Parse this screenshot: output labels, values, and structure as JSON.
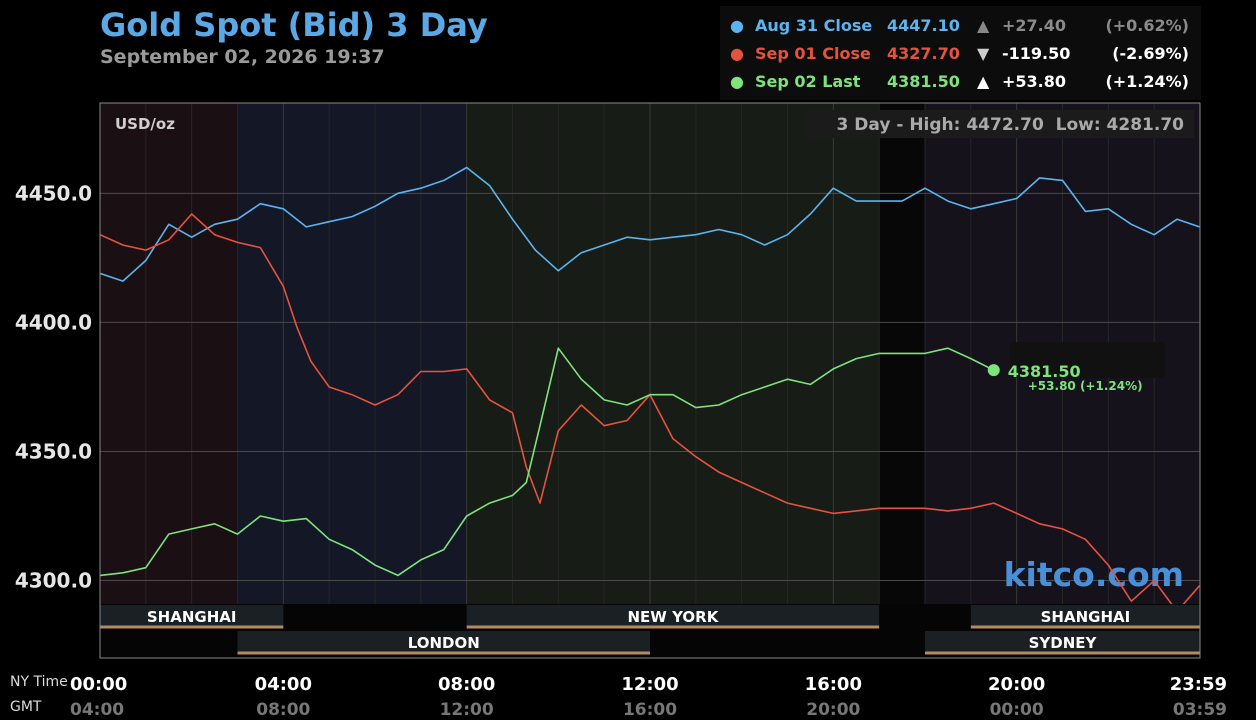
{
  "header": {
    "title": "Gold Spot (Bid) 3 Day",
    "subtitle": "September 02, 2026 19:37"
  },
  "legend": [
    {
      "label": "Aug 31 Close",
      "value": "4447.10",
      "arrow": "▲",
      "change": "+27.40",
      "pct": "(+0.62%)",
      "color": "#5bb4ef",
      "text_color": "#5bb4ef",
      "arrow_color": "#888",
      "dim": true
    },
    {
      "label": "Sep 01 Close",
      "value": "4327.70",
      "arrow": "▼",
      "change": "-119.50",
      "pct": "(-2.69%)",
      "color": "#e5533f",
      "text_color": "#e5533f",
      "arrow_color": "#cccccc",
      "dim": false
    },
    {
      "label": "Sep 02 Last",
      "value": "4381.50",
      "arrow": "▲",
      "change": "+53.80",
      "pct": "(+1.24%)",
      "color": "#7ee37c",
      "text_color": "#7ee37c",
      "arrow_color": "#ffffff",
      "dim": false
    }
  ],
  "plot": {
    "unit": "USD/oz",
    "range_text": "3 Day - High: 4472.70  Low: 4281.70",
    "watermark": "kitco.com",
    "last_value": "4381.50",
    "last_change": "+53.80 (+1.24%)"
  },
  "axis": {
    "ny_time_label": "NY Time",
    "gmt_label": "GMT"
  },
  "sessions_top": [
    {
      "name": "SHANGHAI",
      "start": 0,
      "end": 4
    },
    {
      "name": "NEW YORK",
      "start": 8,
      "end": 17
    },
    {
      "name": "SHANGHAI",
      "start": 19,
      "end": 24
    }
  ],
  "sessions_bottom": [
    {
      "name": "LONDON",
      "start": 3,
      "end": 12
    },
    {
      "name": "SYDNEY",
      "start": 18,
      "end": 24
    }
  ],
  "chart_data": {
    "type": "line",
    "title": "Gold Spot (Bid) 3 Day",
    "ylabel": "USD/oz",
    "ylim": [
      4270,
      4485
    ],
    "xlim": [
      0,
      24
    ],
    "y_ticks": [
      4300.0,
      4350.0,
      4400.0,
      4450.0
    ],
    "y_tick_labels": [
      "4300.0",
      "4350.0",
      "4400.0",
      "4450.0"
    ],
    "x_ticks": [
      0,
      4,
      8,
      12,
      16,
      20,
      24
    ],
    "x_tick_labels_ny": [
      "00:00",
      "04:00",
      "08:00",
      "12:00",
      "16:00",
      "20:00",
      "23:59"
    ],
    "x_tick_labels_gmt": [
      "04:00",
      "08:00",
      "12:00",
      "16:00",
      "20:00",
      "00:00",
      "03:59"
    ],
    "grid": true,
    "high": 4472.7,
    "low": 4281.7,
    "series": [
      {
        "name": "Aug 31",
        "color": "#5bb4ef",
        "x": [
          0,
          0.5,
          1,
          1.5,
          2,
          2.5,
          3,
          3.5,
          4,
          4.5,
          5,
          5.5,
          6,
          6.5,
          7,
          7.5,
          8,
          8.5,
          9,
          9.5,
          10,
          10.5,
          11,
          11.5,
          12,
          12.5,
          13,
          13.5,
          14,
          14.5,
          15,
          15.5,
          16,
          16.5,
          17,
          17.5,
          18,
          18.5,
          19,
          19.5,
          20,
          20.5,
          21,
          21.5,
          22,
          22.5,
          23,
          23.5,
          23.99
        ],
        "y": [
          4419,
          4416,
          4424,
          4438,
          4433,
          4438,
          4440,
          4446,
          4444,
          4437,
          4439,
          4441,
          4445,
          4450,
          4452,
          4455,
          4460,
          4453,
          4440,
          4428,
          4420,
          4427,
          4430,
          4433,
          4432,
          4433,
          4434,
          4436,
          4434,
          4430,
          4434,
          4442,
          4452,
          4447,
          4447,
          4447,
          4452,
          4447,
          4444,
          4446,
          4448,
          4456,
          4455,
          4443,
          4444,
          4438,
          4434,
          4440,
          4437
        ]
      },
      {
        "name": "Sep 01",
        "color": "#e5533f",
        "x": [
          0,
          0.5,
          1,
          1.5,
          2,
          2.5,
          3,
          3.5,
          4,
          4.3,
          4.6,
          5,
          5.5,
          6,
          6.5,
          7,
          7.5,
          8,
          8.5,
          9,
          9.3,
          9.6,
          10,
          10.5,
          11,
          11.5,
          12,
          12.5,
          13,
          13.5,
          14,
          14.5,
          15,
          15.5,
          16,
          16.5,
          17,
          17.5,
          18,
          18.5,
          19,
          19.5,
          20,
          20.5,
          21,
          21.5,
          22,
          22.5,
          23,
          23.5,
          23.99
        ],
        "y": [
          4434,
          4430,
          4428,
          4432,
          4442,
          4434,
          4431,
          4429,
          4414,
          4398,
          4385,
          4375,
          4372,
          4368,
          4372,
          4381,
          4381,
          4382,
          4370,
          4365,
          4344,
          4330,
          4358,
          4368,
          4360,
          4362,
          4372,
          4355,
          4348,
          4342,
          4338,
          4334,
          4330,
          4328,
          4326,
          4327,
          4328,
          4328,
          4328,
          4327,
          4328,
          4330,
          4326,
          4322,
          4320,
          4316,
          4306,
          4292,
          4300,
          4288,
          4298
        ]
      },
      {
        "name": "Sep 02",
        "color": "#7ee37c",
        "x": [
          0,
          0.5,
          1,
          1.5,
          2,
          2.5,
          3,
          3.5,
          4,
          4.5,
          5,
          5.5,
          6,
          6.5,
          7,
          7.5,
          8,
          8.5,
          9,
          9.3,
          9.6,
          10,
          10.5,
          11,
          11.5,
          12,
          12.5,
          13,
          13.5,
          14,
          14.5,
          15,
          15.5,
          16,
          16.5,
          17,
          17.5,
          18,
          18.5,
          19,
          19.5
        ],
        "y": [
          4302,
          4303,
          4305,
          4318,
          4320,
          4322,
          4318,
          4325,
          4323,
          4324,
          4316,
          4312,
          4306,
          4302,
          4308,
          4312,
          4325,
          4330,
          4333,
          4338,
          4360,
          4390,
          4378,
          4370,
          4368,
          4372,
          4372,
          4367,
          4368,
          4372,
          4375,
          4378,
          4376,
          4382,
          4386,
          4388,
          4388,
          4388,
          4390,
          4386,
          4381.5
        ]
      }
    ]
  }
}
